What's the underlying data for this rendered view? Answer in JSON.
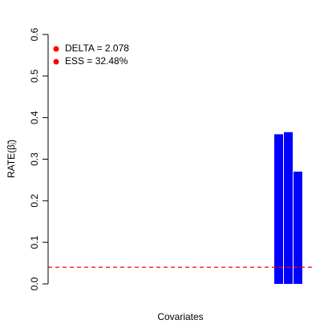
{
  "chart_data": {
    "type": "bar",
    "ylabel": "RATE(β̃ⱼ)",
    "xlabel": "Covariates",
    "values": [
      0,
      0,
      0,
      0,
      0,
      0,
      0,
      0,
      0,
      0,
      0,
      0,
      0,
      0,
      0,
      0,
      0,
      0,
      0,
      0,
      0,
      0,
      0,
      0.36,
      0.365,
      0.27
    ],
    "color": "#0000ff",
    "ylim": [
      0,
      0.6
    ],
    "yticks": [
      {
        "value": 0,
        "label": "0.0"
      },
      0.1,
      0.2,
      0.3,
      0.4,
      0.5,
      0.6
    ],
    "threshold": {
      "value": 0.04,
      "color": "#ff0000"
    },
    "legend": {
      "position": "top-left",
      "color": "#ff0000",
      "entries": [
        "DELTA = 2.078",
        "ESS = 32.48%"
      ]
    }
  }
}
